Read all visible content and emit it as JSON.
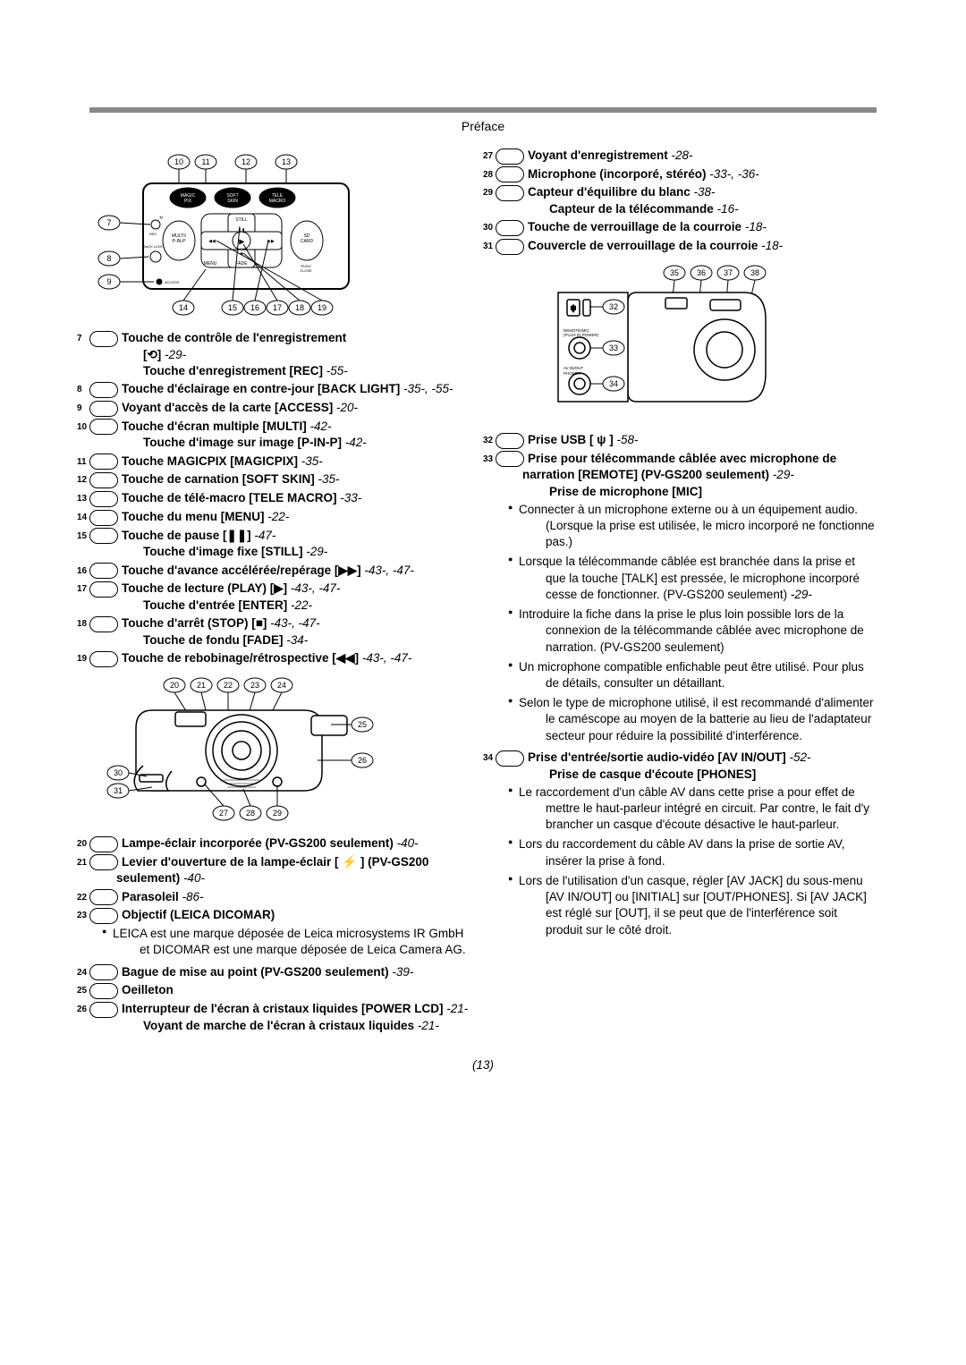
{
  "header": {
    "section": "Préface"
  },
  "page_number": "(13)",
  "left": {
    "items": [
      {
        "n": "7",
        "t": "Touche de contrôle de l'enregistrement",
        "extra": "[⟲] -29-",
        "sub": "Touche d'enregistrement [REC] -55-"
      },
      {
        "n": "8",
        "t": "Touche d'éclairage en contre-jour [BACK LIGHT]",
        "refs": "-35-, -55-"
      },
      {
        "n": "9",
        "t": "Voyant d'accès de la carte [ACCESS]",
        "refs": "-20-"
      },
      {
        "n": "10",
        "t": "Touche d'écran multiple [MULTI]",
        "refs": "-42-",
        "sub": "Touche d'image sur image [P-IN-P] -42-"
      },
      {
        "n": "11",
        "t": "Touche MAGICPIX [MAGICPIX]",
        "refs": "-35-"
      },
      {
        "n": "12",
        "t": "Touche de carnation [SOFT SKIN]",
        "refs": "-35-"
      },
      {
        "n": "13",
        "t": "Touche de télé-macro [TELE MACRO]",
        "refs": "-33-"
      },
      {
        "n": "14",
        "t": "Touche du menu [MENU]",
        "refs": "-22-"
      },
      {
        "n": "15",
        "t": "Touche de pause [❚❚]",
        "refs": "-47-",
        "sub": "Touche d'image fixe [STILL] -29-"
      },
      {
        "n": "16",
        "t": "Touche d'avance accélérée/repérage [▶▶]",
        "refs": "-43-, -47-"
      },
      {
        "n": "17",
        "t": "Touche de lecture (PLAY) [▶]",
        "refs": "-43-, -47-",
        "sub": "Touche d'entrée [ENTER] -22-"
      },
      {
        "n": "18",
        "t": "Touche d'arrêt (STOP) [■]",
        "refs": "-43-, -47-",
        "sub": "Touche de fondu [FADE] -34-"
      },
      {
        "n": "19",
        "t": "Touche de rebobinage/rétrospective [◀◀]",
        "refs": "-43-, -47-"
      }
    ],
    "items2": [
      {
        "n": "20",
        "t": "Lampe-éclair incorporée (PV-GS200 seulement)",
        "refs": "-40-"
      },
      {
        "n": "21",
        "t": "Levier d'ouverture de la lampe-éclair [ ⚡ ] (PV-GS200 seulement)",
        "refs": "-40-"
      },
      {
        "n": "22",
        "t": "Parasoleil",
        "refs": "-86-"
      },
      {
        "n": "23",
        "t": "Objectif (LEICA DICOMAR)",
        "note": "LEICA est une marque déposée de Leica microsystems IR GmbH et DICOMAR est une marque déposée de Leica Camera AG."
      },
      {
        "n": "24",
        "t": "Bague de mise au point (PV-GS200 seulement)",
        "refs": "-39-"
      },
      {
        "n": "25",
        "t": "Oeilleton"
      },
      {
        "n": "26",
        "t": "Interrupteur de l'écran à cristaux liquides [POWER LCD]",
        "refs": "-21-",
        "sub": "Voyant de marche de l'écran à cristaux liquides -21-"
      }
    ]
  },
  "right": {
    "top_items": [
      {
        "n": "27",
        "t": "Voyant d'enregistrement",
        "refs": "-28-"
      },
      {
        "n": "28",
        "t": "Microphone (incorporé, stéréo)",
        "refs": "-33-, -36-"
      },
      {
        "n": "29",
        "t": "Capteur d'équilibre du blanc",
        "refs": "-38-",
        "sub": "Capteur de la télécommande -16-"
      },
      {
        "n": "30",
        "t": "Touche de verrouillage de la courroie",
        "refs": "-18-"
      },
      {
        "n": "31",
        "t": "Couvercle de verrouillage de la courroie",
        "refs": "-18-"
      }
    ],
    "bottom_items": [
      {
        "n": "32",
        "t": "Prise USB [ ψ ]",
        "refs": "-58-"
      },
      {
        "n": "33",
        "t": "Prise pour télécommande câblée avec microphone de narration [REMOTE] (PV-GS200 seulement)",
        "refs": "-29-",
        "sub": "Prise de microphone [MIC]",
        "bullets": [
          "Connecter à un microphone externe ou à un équipement audio. (Lorsque la prise est utilisée, le micro incorporé ne fonctionne pas.)",
          "Lorsque la télécommande câblée est branchée dans la prise et que la touche [TALK] est pressée, le microphone incorporé cesse de fonctionner. (PV-GS200 seulement) -29-",
          "Introduire la fiche dans la prise le plus loin possible lors de la connexion de la télécommande câblée avec microphone de narration. (PV-GS200 seulement)",
          "Un microphone compatible enfichable peut être utilisé. Pour plus de détails, consulter un détaillant.",
          "Selon le type de microphone utilisé, il est recommandé d'alimenter le caméscope au moyen de la batterie au lieu de l'adaptateur secteur pour réduire la possibilité d'interférence."
        ]
      },
      {
        "n": "34",
        "t": "Prise d'entrée/sortie audio-vidéo [AV IN/OUT]",
        "refs": "-52-",
        "sub": "Prise de casque d'écoute [PHONES]",
        "bullets": [
          "Le raccordement d'un câble AV dans cette prise a pour effet de mettre le haut-parleur intégré en circuit. Par contre, le fait d'y brancher un casque d'écoute désactive le haut-parleur.",
          "Lors du raccordement du câble AV dans la prise de sortie AV, insérer la prise à fond.",
          "Lors de l'utilisation d'un casque, régler [AV JACK] du sous-menu [AV IN/OUT] ou [INITIAL] sur [OUT/PHONES]. Si [AV JACK] est réglé sur [OUT], il se peut que de l'interférence soit produit sur le côté droit."
        ]
      }
    ]
  },
  "diagrams": {
    "d1_top_callouts": [
      "10",
      "11",
      "12",
      "13"
    ],
    "d1_left_callouts": [
      "7",
      "8",
      "9"
    ],
    "d1_bottom_callouts": [
      "14",
      "15",
      "16",
      "17",
      "18",
      "19"
    ],
    "d1_labels": [
      "MAGIC PIX",
      "SOFT SKIN",
      "TELE MACRO",
      "MULTI/ P-IN-P",
      "STILL",
      "SD CARD",
      "REC",
      "BACK LIGHT",
      "ACCESS",
      "MENU",
      "ENTER",
      "FADE",
      "PUSH CLOSE"
    ],
    "d2_top_callouts": [
      "20",
      "21",
      "22",
      "23",
      "24"
    ],
    "d2_right_callouts": [
      "25",
      "26"
    ],
    "d2_left_callouts": [
      "30",
      "31"
    ],
    "d2_bottom_callouts": [
      "27",
      "28",
      "29"
    ],
    "d3_top_callouts": [
      "35",
      "36",
      "37",
      "38"
    ],
    "d3_left_callouts": [
      "32",
      "33",
      "34"
    ],
    "d3_labels": [
      "REMOTE/MIC (PLUG IN POWER)",
      "AV IN/OUT PHONES"
    ]
  }
}
